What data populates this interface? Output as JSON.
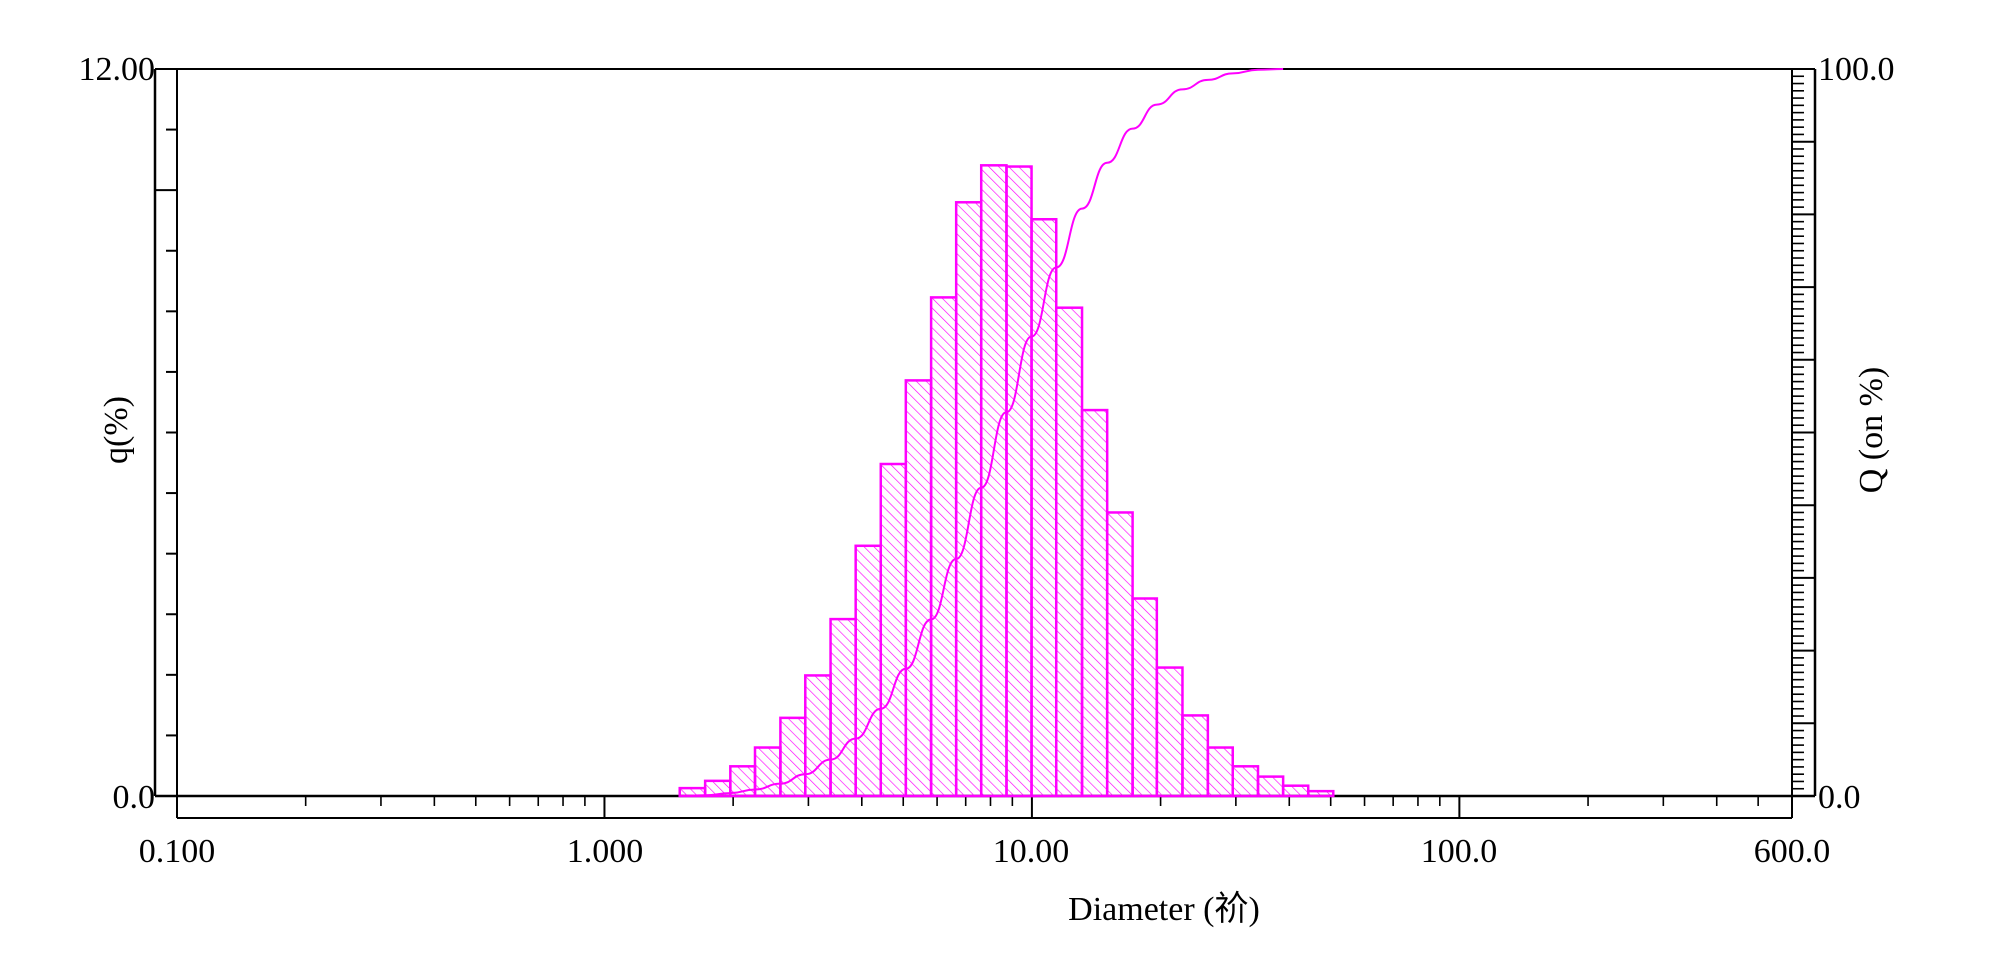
{
  "chart_data": {
    "type": "bar",
    "xlabel": "Diameter (祄)",
    "ylabel": "q(%)",
    "y2label": "Q (on %)",
    "x_scale": "log",
    "xlim": [
      0.1,
      600
    ],
    "ylim": [
      0,
      12
    ],
    "y2lim": [
      0,
      100
    ],
    "x_tick_labels": [
      "0.100",
      "1.000",
      "10.00",
      "100.0",
      "600.0"
    ],
    "x_ticks": [
      0.1,
      1,
      10,
      100,
      600
    ],
    "y_tick_labels": [
      "12.00",
      "0.0"
    ],
    "y2_tick_labels": [
      "100.0",
      "0.0"
    ],
    "grid": false,
    "color": "#ff00ff",
    "bin_edges": [
      1.5,
      1.72,
      1.97,
      2.25,
      2.58,
      2.95,
      3.38,
      3.87,
      4.43,
      5.07,
      5.81,
      6.65,
      7.61,
      8.72,
      9.98,
      11.4,
      13.1,
      15.0,
      17.2,
      19.6,
      22.5,
      25.8,
      29.5,
      33.8,
      38.7,
      44.3,
      50.7
    ],
    "series": [
      {
        "type": "bar",
        "axis": "left",
        "values": [
          0.13,
          0.25,
          0.49,
          0.8,
          1.29,
          1.99,
          2.92,
          4.13,
          5.48,
          6.86,
          8.23,
          9.8,
          10.41,
          10.39,
          9.52,
          8.06,
          6.37,
          4.68,
          3.26,
          2.12,
          1.33,
          0.8,
          0.49,
          0.32,
          0.17,
          0.08
        ]
      },
      {
        "type": "line",
        "axis": "right",
        "x": [
          1.72,
          1.97,
          2.25,
          2.58,
          2.95,
          3.38,
          3.87,
          4.43,
          5.07,
          5.81,
          6.65,
          7.61,
          8.72,
          9.98,
          11.4,
          13.1,
          15.0,
          17.2,
          19.6,
          22.5,
          25.8,
          29.5,
          33.8,
          38.7
        ],
        "values": [
          0.1,
          0.4,
          0.9,
          1.7,
          3.0,
          5.0,
          7.9,
          12.0,
          17.5,
          24.3,
          32.6,
          42.4,
          52.8,
          63.2,
          72.7,
          80.8,
          87.1,
          91.8,
          95.1,
          97.2,
          98.5,
          99.4,
          99.9,
          100
        ]
      }
    ]
  }
}
